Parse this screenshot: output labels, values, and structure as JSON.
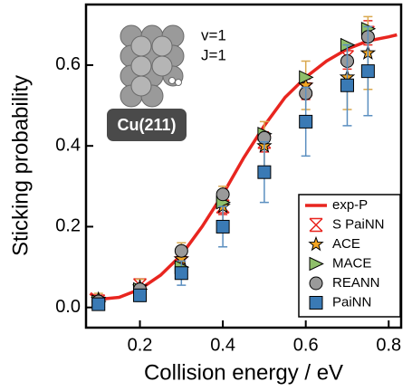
{
  "chart_data": {
    "type": "scatter",
    "xlabel": "Collision energy / eV",
    "ylabel": "Sticking probability",
    "annotations": [
      "v=1",
      "J=1",
      "Cu(211)"
    ],
    "xlim": [
      0.07,
      0.83
    ],
    "ylim": [
      -0.05,
      0.75
    ],
    "xticks": [
      0.2,
      0.4,
      0.6,
      0.8
    ],
    "yticks": [
      {
        "value": 0,
        "label": "0.0"
      },
      0.2,
      0.4,
      0.6
    ],
    "legend": "lower right",
    "series": [
      {
        "name": "exp-P",
        "marker": "line",
        "color": "#e8251f",
        "x": [
          0.08,
          0.1,
          0.15,
          0.2,
          0.25,
          0.3,
          0.35,
          0.4,
          0.45,
          0.5,
          0.55,
          0.6,
          0.65,
          0.7,
          0.75,
          0.8,
          0.82
        ],
        "values": [
          0.035,
          0.02,
          0.025,
          0.045,
          0.08,
          0.13,
          0.2,
          0.28,
          0.37,
          0.45,
          0.52,
          0.57,
          0.61,
          0.64,
          0.66,
          0.67,
          0.675
        ]
      },
      {
        "name": "S PaiNN",
        "marker": "x",
        "color": "#e8251f",
        "error_color": "#e8251f",
        "x": [
          0.1,
          0.2,
          0.3,
          0.4,
          0.5,
          0.6,
          0.7,
          0.75
        ],
        "values": [
          0.015,
          0.055,
          0.11,
          0.25,
          0.41,
          0.54,
          0.62,
          0.68
        ],
        "errors": [
          0.01,
          0.015,
          0.02,
          0.02,
          0.025,
          0.025,
          0.03,
          0.03
        ]
      },
      {
        "name": "ACE",
        "marker": "star",
        "color": "#f5a623",
        "error_color": "#d9a84e",
        "x": [
          0.1,
          0.2,
          0.3,
          0.4,
          0.5,
          0.6,
          0.7,
          0.75
        ],
        "values": [
          0.02,
          0.05,
          0.12,
          0.25,
          0.4,
          0.55,
          0.57,
          0.63
        ],
        "errors": [
          0.015,
          0.02,
          0.04,
          0.05,
          0.06,
          0.06,
          0.08,
          0.09
        ]
      },
      {
        "name": "MACE",
        "marker": "triangle",
        "color": "#8fbf6a",
        "x": [
          0.1,
          0.2,
          0.3,
          0.4,
          0.5,
          0.6,
          0.7,
          0.75
        ],
        "values": [
          0.015,
          0.045,
          0.1,
          0.26,
          0.43,
          0.57,
          0.65,
          0.69
        ]
      },
      {
        "name": "REANN",
        "marker": "circle",
        "color": "#9a9a9a",
        "x": [
          0.1,
          0.2,
          0.3,
          0.4,
          0.5,
          0.6,
          0.7,
          0.75
        ],
        "values": [
          0.015,
          0.045,
          0.14,
          0.28,
          0.42,
          0.53,
          0.61,
          0.67
        ]
      },
      {
        "name": "PaiNN",
        "marker": "square",
        "color": "#3a7ab5",
        "error_color": "#5b8fc0",
        "x": [
          0.1,
          0.2,
          0.3,
          0.4,
          0.5,
          0.6,
          0.7,
          0.75
        ],
        "values": [
          0.008,
          0.03,
          0.085,
          0.2,
          0.335,
          0.46,
          0.55,
          0.585
        ],
        "errors": [
          0.01,
          0.015,
          0.03,
          0.05,
          0.075,
          0.085,
          0.1,
          0.11
        ]
      }
    ]
  }
}
